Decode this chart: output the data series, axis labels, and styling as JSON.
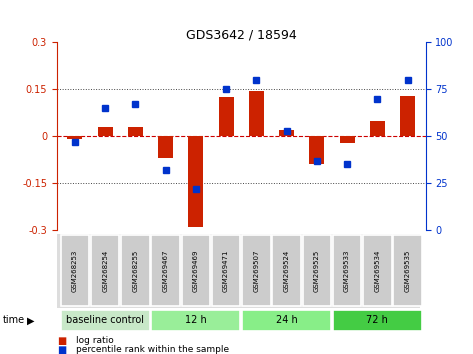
{
  "title": "GDS3642 / 18594",
  "samples": [
    "GSM268253",
    "GSM268254",
    "GSM268255",
    "GSM269467",
    "GSM269469",
    "GSM269471",
    "GSM269507",
    "GSM269524",
    "GSM269525",
    "GSM269533",
    "GSM269534",
    "GSM269535"
  ],
  "log_ratio": [
    -0.01,
    0.03,
    0.03,
    -0.07,
    -0.29,
    0.125,
    0.145,
    0.02,
    -0.09,
    -0.02,
    0.05,
    0.13
  ],
  "percentile_rank": [
    47,
    65,
    67,
    32,
    22,
    75,
    80,
    53,
    37,
    35,
    70,
    80
  ],
  "ylim_left": [
    -0.3,
    0.3
  ],
  "ylim_right": [
    0,
    100
  ],
  "yticks_left": [
    -0.3,
    -0.15,
    0,
    0.15,
    0.3
  ],
  "yticks_right": [
    0,
    25,
    50,
    75,
    100
  ],
  "bar_color_red": "#cc2200",
  "bar_color_blue": "#0033cc",
  "hline_color": "#cc0000",
  "dotted_color": "#444444",
  "background_plot": "#ffffff",
  "group_defs": [
    {
      "label": "baseline control",
      "start": 0,
      "end": 3,
      "color": "#c8e8c8"
    },
    {
      "label": "12 h",
      "start": 3,
      "end": 6,
      "color": "#99ee99"
    },
    {
      "label": "24 h",
      "start": 6,
      "end": 9,
      "color": "#88ee88"
    },
    {
      "label": "72 h",
      "start": 9,
      "end": 12,
      "color": "#44cc44"
    }
  ],
  "time_label": "time"
}
